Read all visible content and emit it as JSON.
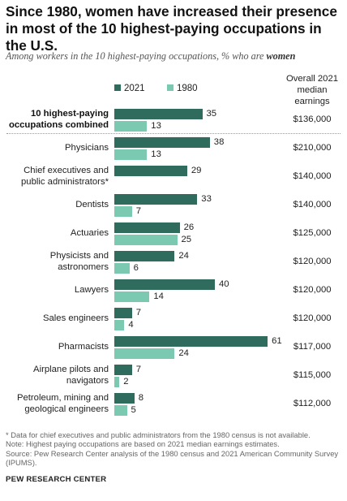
{
  "title": "Since 1980, women have increased their presence in most of the 10 highest-paying occupations in the U.S.",
  "subtitle_prefix": "Among workers in the 10 highest-paying occupations, % who are ",
  "subtitle_emph": "women",
  "earnings_header": "Overall 2021 median earnings",
  "footnote": "* Data for chief executives and public administrators from the 1980 census is not available.",
  "note": "Note: Highest paying occupations are based on 2021 median earnings estimates.",
  "source": "Source: Pew Research Center analysis of the 1980 census and 2021 American Community Survey (IPUMS).",
  "credit": "PEW RESEARCH CENTER",
  "colors": {
    "s2021": "#2f6c5d",
    "s1980": "#7cc9b2"
  },
  "chart_data": {
    "type": "bar",
    "orientation": "horizontal",
    "series": [
      {
        "name": "2021",
        "values": [
          35,
          38,
          29,
          33,
          26,
          24,
          40,
          7,
          61,
          7,
          8
        ]
      },
      {
        "name": "1980",
        "values": [
          13,
          13,
          null,
          7,
          25,
          6,
          14,
          4,
          24,
          2,
          5
        ]
      }
    ],
    "categories": [
      "10 highest-paying occupations combined",
      "Physicians",
      "Chief executives and public administrators*",
      "Dentists",
      "Actuaries",
      "Physicists and astronomers",
      "Lawyers",
      "Sales engineers",
      "Pharmacists",
      "Airplane pilots and navigators",
      "Petroleum, mining and geological engineers"
    ],
    "category_lines": [
      [
        "10 highest-paying",
        "occupations combined"
      ],
      [
        "Physicians"
      ],
      [
        "Chief executives and",
        "public administrators*"
      ],
      [
        "Dentists"
      ],
      [
        "Actuaries"
      ],
      [
        "Physicists and",
        "astronomers"
      ],
      [
        "Lawyers"
      ],
      [
        "Sales engineers"
      ],
      [
        "Pharmacists"
      ],
      [
        "Airplane pilots and",
        "navigators"
      ],
      [
        "Petroleum, mining and",
        "geological engineers"
      ]
    ],
    "earnings": [
      "$136,000",
      "$210,000",
      "$140,000",
      "$140,000",
      "$125,000",
      "$120,000",
      "$120,000",
      "$120,000",
      "$117,000",
      "$115,000",
      "$112,000"
    ],
    "xlim": [
      0,
      100
    ],
    "grid": false,
    "legend_position": "top"
  }
}
